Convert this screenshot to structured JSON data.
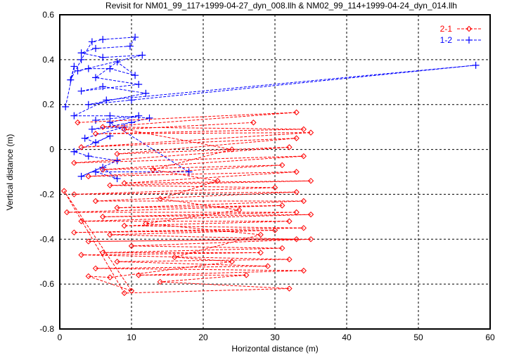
{
  "chart_data": {
    "type": "line",
    "title": "Revisit for NM01_99_117+1999-04-27_dyn_008.llh & NM02_99_114+1999-04-24_dyn_014.llh",
    "xlabel": "Horizontal distance (m)",
    "ylabel": "Vertical distance (m)",
    "xlim": [
      0,
      60
    ],
    "ylim": [
      -0.8,
      0.6
    ],
    "xticks": [
      0,
      10,
      20,
      30,
      40,
      50,
      60
    ],
    "yticks": [
      -0.8,
      -0.6,
      -0.4,
      -0.2,
      0,
      0.2,
      0.4,
      0.6
    ],
    "ytick_labels": [
      "-0.8",
      "-0.6",
      "-0.4",
      "-0.2",
      "0",
      "0.2",
      "0.4",
      "0.6"
    ],
    "grid": true,
    "legend": "top-right",
    "series": [
      {
        "name": "1-2",
        "color": "#0000ff",
        "marker": "plus",
        "points": [
          [
            0.8,
            0.19
          ],
          [
            2,
            0.37
          ],
          [
            1.5,
            0.31
          ],
          [
            3,
            0.4
          ],
          [
            4.5,
            0.48
          ],
          [
            6,
            0.49
          ],
          [
            10.5,
            0.5
          ],
          [
            9.8,
            0.46
          ],
          [
            5,
            0.45
          ],
          [
            3,
            0.43
          ],
          [
            6,
            0.41
          ],
          [
            11.5,
            0.42
          ],
          [
            2.5,
            0.35
          ],
          [
            4,
            0.36
          ],
          [
            7,
            0.36
          ],
          [
            10.5,
            0.33
          ],
          [
            8,
            0.39
          ],
          [
            5,
            0.32
          ],
          [
            11,
            0.29
          ],
          [
            3,
            0.26
          ],
          [
            6,
            0.28
          ],
          [
            12,
            0.25
          ],
          [
            4,
            0.2
          ],
          [
            10,
            0.22
          ],
          [
            58,
            0.375
          ],
          [
            6.5,
            0.22
          ],
          [
            2,
            0.15
          ],
          [
            7,
            0.15
          ],
          [
            12.5,
            0.14
          ],
          [
            10,
            0.12
          ],
          [
            4.5,
            0.09
          ],
          [
            9,
            0.1
          ],
          [
            3.5,
            0.05
          ],
          [
            5,
            0.03
          ],
          [
            7,
            0.06
          ],
          [
            2,
            -0.01
          ],
          [
            4,
            -0.03
          ],
          [
            8,
            -0.05
          ],
          [
            3,
            -0.12
          ],
          [
            6,
            -0.08
          ],
          [
            8,
            -0.13
          ],
          [
            5,
            -0.1
          ],
          [
            18,
            -0.1
          ],
          [
            7,
            0.12
          ],
          [
            11,
            0.15
          ],
          [
            5,
            0.13
          ]
        ]
      },
      {
        "name": "2-1",
        "color": "#ff0000",
        "marker": "diamond",
        "points": [
          [
            2.5,
            0.12
          ],
          [
            33,
            0.165
          ],
          [
            6,
            0.1
          ],
          [
            34,
            0.09
          ],
          [
            5,
            0.07
          ],
          [
            35,
            0.075
          ],
          [
            3,
            0.01
          ],
          [
            33,
            0.05
          ],
          [
            8,
            -0.02
          ],
          [
            32,
            0.01
          ],
          [
            2,
            -0.06
          ],
          [
            34,
            -0.03
          ],
          [
            6,
            -0.09
          ],
          [
            31,
            -0.07
          ],
          [
            4,
            -0.12
          ],
          [
            33,
            -0.1
          ],
          [
            9,
            -0.15
          ],
          [
            35,
            -0.14
          ],
          [
            7,
            -0.16
          ],
          [
            30,
            -0.17
          ],
          [
            2,
            -0.2
          ],
          [
            33,
            -0.19
          ],
          [
            5,
            -0.23
          ],
          [
            34,
            -0.23
          ],
          [
            8,
            -0.26
          ],
          [
            31,
            -0.25
          ],
          [
            1,
            -0.28
          ],
          [
            33,
            -0.28
          ],
          [
            6,
            -0.3
          ],
          [
            35,
            -0.29
          ],
          [
            3,
            -0.32
          ],
          [
            32,
            -0.32
          ],
          [
            9,
            -0.34
          ],
          [
            34,
            -0.35
          ],
          [
            2,
            -0.37
          ],
          [
            30,
            -0.36
          ],
          [
            7,
            -0.38
          ],
          [
            33,
            -0.4
          ],
          [
            4,
            -0.41
          ],
          [
            35,
            -0.4
          ],
          [
            10,
            -0.43
          ],
          [
            31,
            -0.44
          ],
          [
            6,
            -0.46
          ],
          [
            28,
            -0.46
          ],
          [
            3,
            -0.47
          ],
          [
            32,
            -0.49
          ],
          [
            8,
            -0.5
          ],
          [
            29,
            -0.52
          ],
          [
            5,
            -0.53
          ],
          [
            34,
            -0.54
          ],
          [
            11,
            -0.56
          ],
          [
            26,
            -0.56
          ],
          [
            14,
            -0.59
          ],
          [
            32,
            -0.62
          ],
          [
            9,
            -0.64
          ],
          [
            0.6,
            -0.185
          ],
          [
            10,
            -0.63
          ],
          [
            4,
            -0.565
          ],
          [
            7,
            -0.57
          ],
          [
            24,
            -0.5
          ],
          [
            16,
            -0.48
          ],
          [
            28,
            -0.38
          ],
          [
            12,
            -0.33
          ],
          [
            25,
            -0.27
          ],
          [
            14,
            -0.22
          ],
          [
            22,
            -0.14
          ],
          [
            13,
            -0.09
          ],
          [
            24,
            0.0
          ],
          [
            9,
            0.09
          ],
          [
            27,
            0.12
          ]
        ]
      }
    ]
  }
}
